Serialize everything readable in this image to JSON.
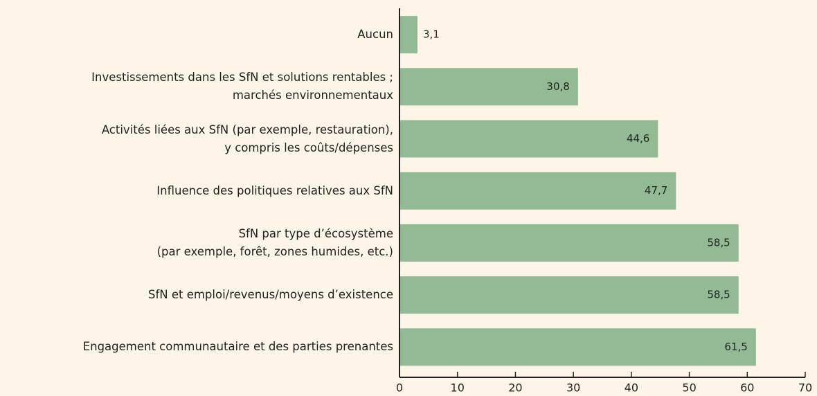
{
  "chart_data": {
    "type": "barh",
    "categories": [
      "Aucun",
      "Investissements dans les SfN et solutions rentables ;\nmarchés environnementaux",
      "Activités liées aux SfN (par exemple, restauration),\ny compris les coûts/dépenses",
      "Influence des politiques relatives aux SfN",
      "SfN par type d’écosystème\n(par exemple, forêt, zones humides, etc.)",
      "SfN et emploi/revenus/moyens d’existence",
      "Engagement communautaire et des parties prenantes"
    ],
    "values": [
      3.1,
      30.8,
      44.6,
      47.7,
      58.5,
      58.5,
      61.5
    ],
    "value_labels": [
      "3,1",
      "30,8",
      "44,6",
      "47,7",
      "58,5",
      "58,5",
      "61,5"
    ],
    "color": "#93bb93",
    "xlim": [
      0,
      70
    ],
    "xticks": [
      0,
      10,
      20,
      30,
      40,
      50,
      60,
      70
    ]
  }
}
